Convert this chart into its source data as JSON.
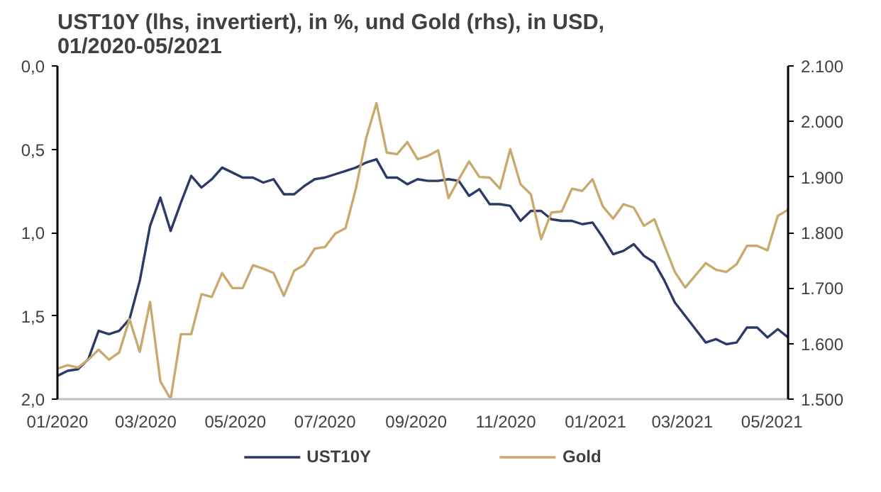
{
  "chart_data": {
    "type": "line",
    "title": "UST10Y (lhs, invertiert), in %, und Gold (rhs), in USD, 01/2020-05/2021",
    "x": [
      "2020-01-01",
      "2020-01-08",
      "2020-01-15",
      "2020-01-22",
      "2020-01-29",
      "2020-02-05",
      "2020-02-12",
      "2020-02-19",
      "2020-02-26",
      "2020-03-04",
      "2020-03-11",
      "2020-03-18",
      "2020-03-25",
      "2020-04-01",
      "2020-04-08",
      "2020-04-15",
      "2020-04-22",
      "2020-04-29",
      "2020-05-06",
      "2020-05-13",
      "2020-05-20",
      "2020-05-27",
      "2020-06-03",
      "2020-06-10",
      "2020-06-17",
      "2020-06-24",
      "2020-07-01",
      "2020-07-08",
      "2020-07-15",
      "2020-07-22",
      "2020-07-29",
      "2020-08-05",
      "2020-08-12",
      "2020-08-19",
      "2020-08-26",
      "2020-09-02",
      "2020-09-09",
      "2020-09-16",
      "2020-09-23",
      "2020-09-30",
      "2020-10-07",
      "2020-10-14",
      "2020-10-21",
      "2020-10-28",
      "2020-11-04",
      "2020-11-11",
      "2020-11-18",
      "2020-11-25",
      "2020-12-02",
      "2020-12-09",
      "2020-12-16",
      "2020-12-23",
      "2020-12-30",
      "2021-01-06",
      "2021-01-13",
      "2021-01-20",
      "2021-01-27",
      "2021-02-03",
      "2021-02-10",
      "2021-02-17",
      "2021-02-24",
      "2021-03-03",
      "2021-03-10",
      "2021-03-17",
      "2021-03-24",
      "2021-03-31",
      "2021-04-07",
      "2021-04-14",
      "2021-04-21",
      "2021-04-28",
      "2021-05-05",
      "2021-05-12"
    ],
    "series": [
      {
        "name": "UST10Y",
        "color": "#2b3a67",
        "values": [
          1.86,
          1.83,
          1.82,
          1.76,
          1.59,
          1.61,
          1.59,
          1.52,
          1.29,
          0.96,
          0.79,
          0.99,
          0.82,
          0.66,
          0.73,
          0.68,
          0.61,
          0.64,
          0.67,
          0.67,
          0.7,
          0.68,
          0.77,
          0.77,
          0.72,
          0.68,
          0.67,
          0.65,
          0.63,
          0.61,
          0.58,
          0.56,
          0.67,
          0.67,
          0.71,
          0.68,
          0.69,
          0.69,
          0.68,
          0.69,
          0.78,
          0.74,
          0.83,
          0.83,
          0.84,
          0.93,
          0.87,
          0.87,
          0.92,
          0.93,
          0.93,
          0.95,
          0.94,
          1.03,
          1.13,
          1.11,
          1.07,
          1.14,
          1.18,
          1.29,
          1.42,
          1.5,
          1.58,
          1.66,
          1.64,
          1.67,
          1.66,
          1.57,
          1.57,
          1.63,
          1.58,
          1.63
        ]
      },
      {
        "name": "Gold",
        "color": "#c8aa6e",
        "axis": "y2",
        "values": [
          1555,
          1561,
          1557,
          1571,
          1589,
          1571,
          1584,
          1644,
          1585,
          1675,
          1532,
          1500,
          1617,
          1617,
          1689,
          1684,
          1727,
          1700,
          1700,
          1741,
          1735,
          1727,
          1686,
          1731,
          1742,
          1771,
          1774,
          1798,
          1808,
          1879,
          1970,
          2033,
          1944,
          1941,
          1963,
          1932,
          1938,
          1948,
          1862,
          1896,
          1928,
          1900,
          1899,
          1879,
          1950,
          1887,
          1869,
          1788,
          1836,
          1838,
          1879,
          1875,
          1896,
          1847,
          1825,
          1851,
          1845,
          1812,
          1824,
          1776,
          1729,
          1701,
          1723,
          1745,
          1733,
          1729,
          1743,
          1776,
          1776,
          1768,
          1830,
          1841
        ]
      }
    ],
    "xlim": [
      "2020-01-01",
      "2021-05-12"
    ],
    "xticks": [
      {
        "value": "2020-01-01",
        "label": "01/2020"
      },
      {
        "value": "2020-03-01",
        "label": "03/2020"
      },
      {
        "value": "2020-05-01",
        "label": "05/2020"
      },
      {
        "value": "2020-07-01",
        "label": "07/2020"
      },
      {
        "value": "2020-09-01",
        "label": "09/2020"
      },
      {
        "value": "2020-11-01",
        "label": "11/2020"
      },
      {
        "value": "2021-01-01",
        "label": "01/2021"
      },
      {
        "value": "2021-03-01",
        "label": "03/2021"
      },
      {
        "value": "2021-05-01",
        "label": "05/2021"
      }
    ],
    "ylim": [
      2.0,
      0.0
    ],
    "yticks": [
      {
        "value": 0.0,
        "label": "0,0"
      },
      {
        "value": 0.5,
        "label": "0,5"
      },
      {
        "value": 1.0,
        "label": "1,0"
      },
      {
        "value": 1.5,
        "label": "1,5"
      },
      {
        "value": 2.0,
        "label": "2,0"
      }
    ],
    "y2lim": [
      1500,
      2100
    ],
    "y2ticks": [
      {
        "value": 1500,
        "label": "1.500"
      },
      {
        "value": 1600,
        "label": "1.600"
      },
      {
        "value": 1700,
        "label": "1.700"
      },
      {
        "value": 1800,
        "label": "1.800"
      },
      {
        "value": 1900,
        "label": "1.900"
      },
      {
        "value": 2000,
        "label": "2.000"
      },
      {
        "value": 2100,
        "label": "2.100"
      }
    ],
    "grid": false,
    "legend": "bottom",
    "line_style": "solid",
    "marker": "none"
  }
}
